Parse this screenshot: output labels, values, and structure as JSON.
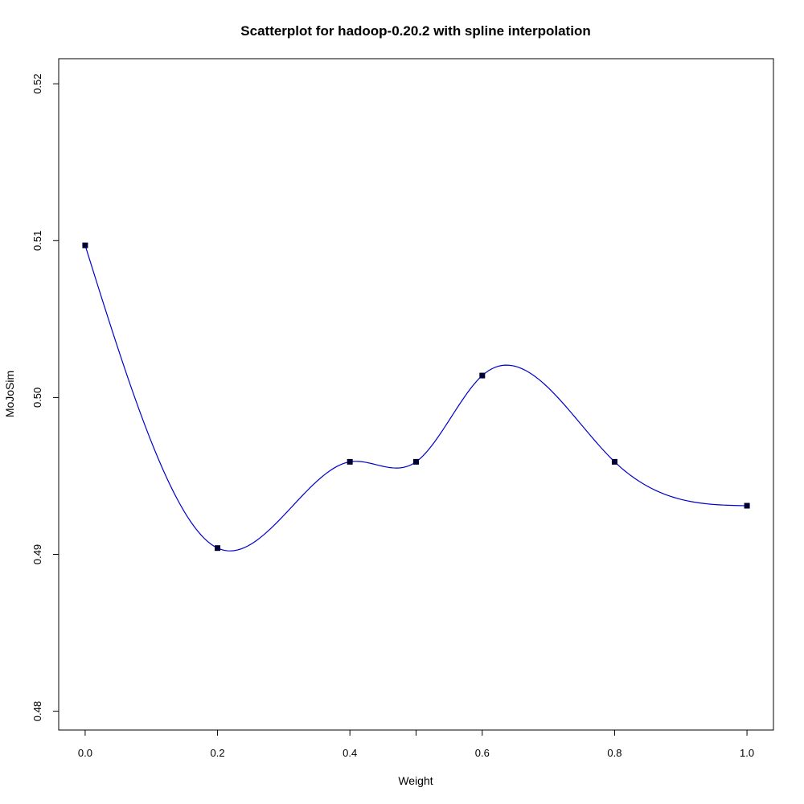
{
  "chart_data": {
    "type": "scatter",
    "title": "Scatterplot for hadoop-0.20.2 with spline interpolation",
    "xlabel": "Weight",
    "ylabel": "MoJoSim",
    "xlim": [
      -0.04,
      1.04
    ],
    "ylim": [
      0.4788,
      0.5216
    ],
    "x_ticks": [
      0.0,
      0.2,
      0.4,
      0.5,
      0.6,
      0.8,
      1.0
    ],
    "x_tick_labels": [
      "0.0",
      "0.2",
      "0.4",
      "0.6",
      "0.8",
      "1.0"
    ],
    "x_tick_label_values": [
      0.0,
      0.2,
      0.4,
      0.6,
      0.8,
      1.0
    ],
    "y_ticks": [
      0.48,
      0.49,
      0.5,
      0.51,
      0.52
    ],
    "y_tick_labels": [
      "0.48",
      "0.49",
      "0.50",
      "0.51",
      "0.52"
    ],
    "grid": false,
    "series": [
      {
        "marker": "square",
        "marker_color": "#000033",
        "line_color": "#0000cc",
        "interpolation": "spline",
        "x": [
          0.0,
          0.2,
          0.4,
          0.5,
          0.6,
          0.8,
          1.0
        ],
        "y": [
          0.5097,
          0.4904,
          0.4959,
          0.4959,
          0.5014,
          0.4959,
          0.4931
        ]
      }
    ]
  }
}
